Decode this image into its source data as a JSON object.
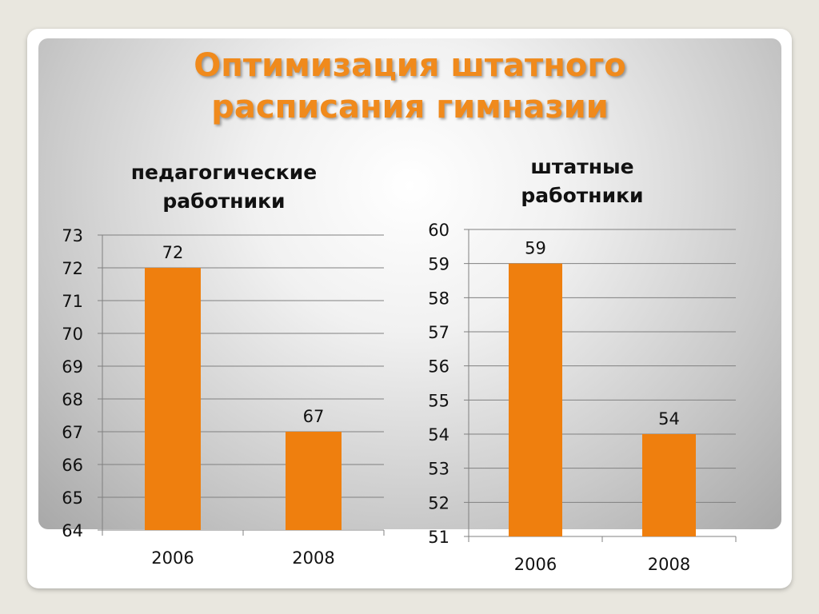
{
  "title": {
    "line1": "Оптимизация штатного",
    "line2": "расписания гимназии"
  },
  "colors": {
    "title": "#f08a1c",
    "bar": "#ef7f0e",
    "grid": "#808080",
    "text": "#111111"
  },
  "chart_data": [
    {
      "type": "bar",
      "title": "педагогические работники",
      "title_lines": [
        "педагогические",
        "работники"
      ],
      "categories": [
        "2006",
        "2008"
      ],
      "values": [
        72,
        67
      ],
      "data_labels": [
        "72",
        "67"
      ],
      "ylim": [
        64,
        73
      ],
      "yticks": [
        64,
        65,
        66,
        67,
        68,
        69,
        70,
        71,
        72,
        73
      ],
      "grid": true,
      "legend": "none"
    },
    {
      "type": "bar",
      "title": "штатные работники",
      "title_lines": [
        "штатные",
        "работники"
      ],
      "categories": [
        "2006",
        "2008"
      ],
      "values": [
        59,
        54
      ],
      "data_labels": [
        "59",
        "54"
      ],
      "ylim": [
        51,
        60
      ],
      "yticks": [
        51,
        52,
        53,
        54,
        55,
        56,
        57,
        58,
        59,
        60
      ],
      "grid": true,
      "legend": "none"
    }
  ]
}
